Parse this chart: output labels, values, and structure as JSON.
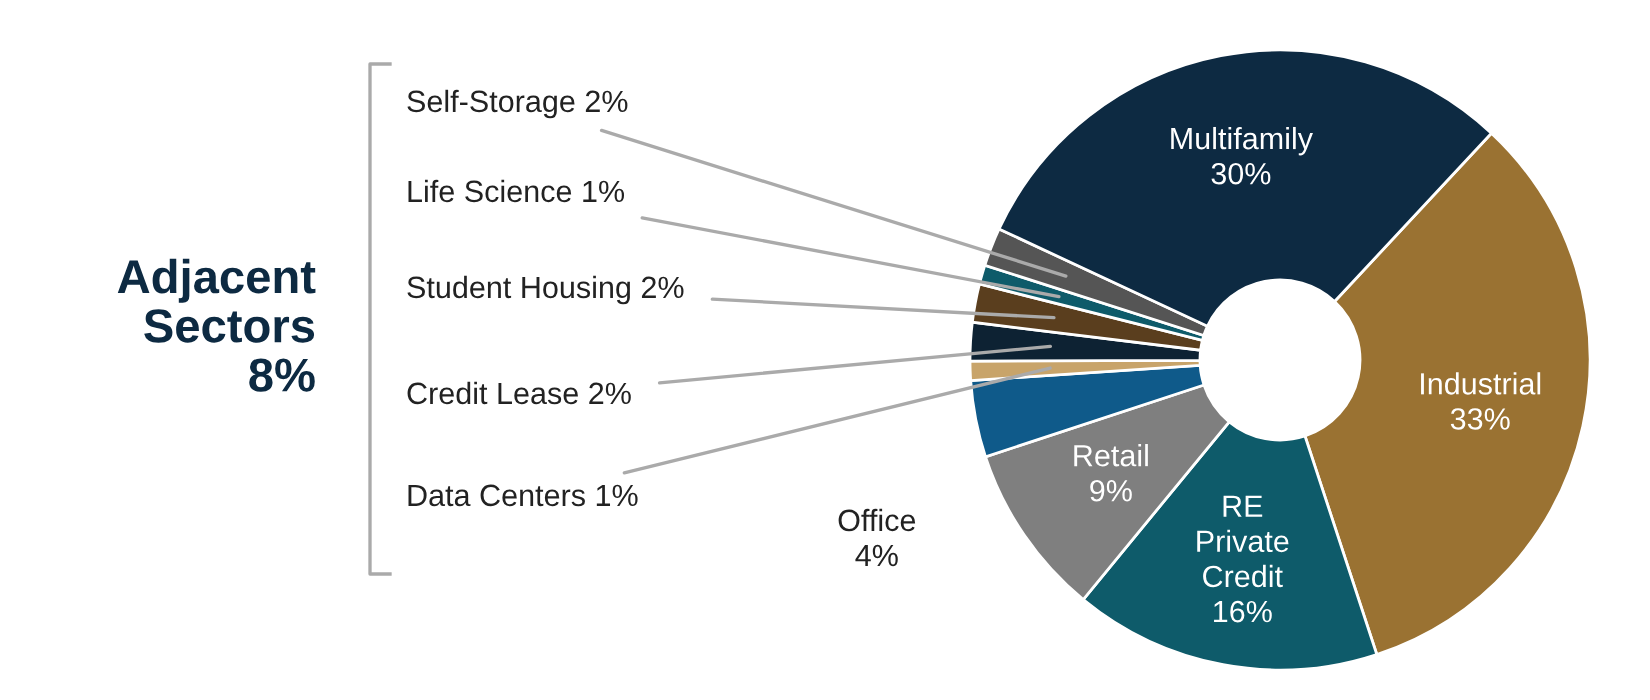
{
  "chart_data": {
    "type": "donut",
    "categories": [
      "Industrial",
      "RE Private Credit",
      "Retail",
      "Office",
      "Data Centers",
      "Credit Lease",
      "Student Housing",
      "Life Science",
      "Self-Storage",
      "Multifamily"
    ],
    "values": [
      33,
      16,
      9,
      4,
      1,
      2,
      2,
      1,
      2,
      30
    ],
    "value_labels": [
      "33%",
      "16%",
      "9%",
      "4%",
      "1%",
      "2%",
      "2%",
      "1%",
      "2%",
      "30%"
    ],
    "colors": [
      "#9a7232",
      "#0e5b6a",
      "#7f7f7f",
      "#0f5a8a",
      "#c8a46a",
      "#0d2233",
      "#5a3e1e",
      "#0e5b6a",
      "#555555",
      "#0d2a42"
    ],
    "annotations": [
      "Adjacent Sectors 8%"
    ],
    "legend": false
  }
}
